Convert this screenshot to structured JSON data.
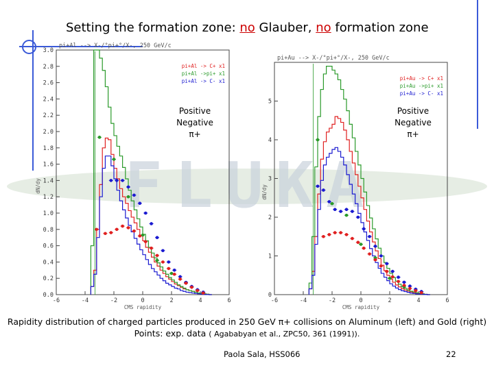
{
  "slide": {
    "title_parts": [
      "Setting the formation zone: ",
      "no",
      " Glauber, ",
      "no",
      " formation zone"
    ],
    "caption_line1": "Rapidity distribution of charged particles produced in 250 GeV π+ collisions on Aluminum (left) and Gold (right)",
    "caption_line2": "Points: exp. data",
    "caption_ref": "( Agababyan et al., ZPC50, 361 (1991)).",
    "footer": "Paola Sala, HSS066",
    "page_number": "22",
    "watermark_text": "FLUKA",
    "colors": {
      "accent": "#cc0000",
      "frame": "#3a5ad8",
      "positive": "#e02020",
      "negative": "#1a1ad0",
      "pion": "#2a9a2a"
    }
  },
  "overlay_legend": {
    "positive": "Positive",
    "negative": "Negative",
    "pion": "π+"
  },
  "chart_data": [
    {
      "type": "line",
      "title": "pi+Al --> X-/°pi+°/X-, 250 GeV/c",
      "xlabel": "CMS rapidity",
      "ylabel": "dN/dy",
      "xlim": [
        -6,
        6
      ],
      "ylim": [
        0,
        3.0
      ],
      "xticks": [
        -6,
        -4,
        -2,
        0,
        2,
        4,
        6
      ],
      "yticks": [
        0.0,
        0.2,
        0.4,
        0.6,
        0.8,
        1.0,
        1.2,
        1.4,
        1.6,
        1.8,
        2.0,
        2.2,
        2.4,
        2.6,
        2.8,
        3.0
      ],
      "legend": [
        "pi+Al -> C+ x1",
        "pi+Al ->pi+ x1",
        "pi+Al -> C- x1"
      ],
      "series": [
        {
          "name": "pi+Al -> C+ x1",
          "color": "#e02020",
          "style": "step",
          "x": [
            -3.6,
            -3.4,
            -3.2,
            -3.0,
            -2.8,
            -2.6,
            -2.4,
            -2.2,
            -2.0,
            -1.8,
            -1.6,
            -1.4,
            -1.2,
            -1.0,
            -0.8,
            -0.6,
            -0.4,
            -0.2,
            0.0,
            0.2,
            0.4,
            0.6,
            0.8,
            1.0,
            1.2,
            1.4,
            1.6,
            1.8,
            2.0,
            2.2,
            2.4,
            2.6,
            2.8,
            3.0,
            3.2,
            3.4,
            3.6,
            3.8,
            4.0,
            4.2,
            4.4,
            4.6
          ],
          "y": [
            0.1,
            0.3,
            0.8,
            1.35,
            1.8,
            1.92,
            1.9,
            1.72,
            1.55,
            1.42,
            1.3,
            1.2,
            1.12,
            1.03,
            0.95,
            0.88,
            0.8,
            0.73,
            0.66,
            0.58,
            0.52,
            0.46,
            0.4,
            0.35,
            0.3,
            0.26,
            0.22,
            0.19,
            0.16,
            0.13,
            0.11,
            0.09,
            0.07,
            0.06,
            0.05,
            0.04,
            0.03,
            0.02,
            0.015,
            0.01,
            0.005,
            0.0
          ]
        },
        {
          "name": "pi+Al ->pi+ x1",
          "color": "#2a9a2a",
          "style": "step",
          "x": [
            -3.6,
            -3.4,
            -3.2,
            -3.0,
            -2.8,
            -2.6,
            -2.4,
            -2.2,
            -2.0,
            -1.8,
            -1.6,
            -1.4,
            -1.2,
            -1.0,
            -0.8,
            -0.6,
            -0.4,
            -0.2,
            0.0,
            0.2,
            0.4,
            0.6,
            0.8,
            1.0,
            1.2,
            1.4,
            1.6,
            1.8,
            2.0,
            2.2,
            2.4,
            2.6,
            2.8,
            3.0,
            3.2,
            3.4,
            3.6,
            3.8,
            4.0,
            4.2,
            4.4,
            4.6
          ],
          "y": [
            0.6,
            3.0,
            3.0,
            2.9,
            2.75,
            2.55,
            2.3,
            2.1,
            1.95,
            1.82,
            1.7,
            1.56,
            1.42,
            1.28,
            1.15,
            1.04,
            0.93,
            0.83,
            0.74,
            0.66,
            0.58,
            0.51,
            0.45,
            0.39,
            0.34,
            0.29,
            0.25,
            0.21,
            0.18,
            0.15,
            0.12,
            0.1,
            0.08,
            0.06,
            0.05,
            0.04,
            0.03,
            0.02,
            0.015,
            0.01,
            0.005,
            0.0
          ]
        },
        {
          "name": "pi+Al -> C- x1",
          "color": "#1a1ad0",
          "style": "step",
          "x": [
            -3.6,
            -3.4,
            -3.2,
            -3.0,
            -2.8,
            -2.6,
            -2.4,
            -2.2,
            -2.0,
            -1.8,
            -1.6,
            -1.4,
            -1.2,
            -1.0,
            -0.8,
            -0.6,
            -0.4,
            -0.2,
            0.0,
            0.2,
            0.4,
            0.6,
            0.8,
            1.0,
            1.2,
            1.4,
            1.6,
            1.8,
            2.0,
            2.2,
            2.4,
            2.6,
            2.8,
            3.0,
            3.2,
            3.4,
            3.6,
            3.8,
            4.0,
            4.2,
            4.4,
            4.6
          ],
          "y": [
            0.1,
            0.25,
            0.7,
            1.2,
            1.55,
            1.7,
            1.7,
            1.58,
            1.42,
            1.28,
            1.15,
            1.04,
            0.94,
            0.85,
            0.77,
            0.69,
            0.62,
            0.55,
            0.49,
            0.43,
            0.37,
            0.32,
            0.28,
            0.24,
            0.2,
            0.17,
            0.14,
            0.12,
            0.1,
            0.08,
            0.07,
            0.05,
            0.04,
            0.03,
            0.025,
            0.02,
            0.015,
            0.01,
            0.005,
            0.003,
            0.001,
            0.0
          ]
        },
        {
          "name": "pi+ data",
          "color": "#2a9a2a",
          "style": "points",
          "x": [
            -3.0,
            -2.0,
            -1.0,
            0.0,
            1.0,
            2.0,
            3.0
          ],
          "y": [
            1.93,
            1.66,
            1.2,
            0.73,
            0.42,
            0.26,
            0.15
          ]
        },
        {
          "name": "C- data",
          "color": "#1a1ad0",
          "style": "points",
          "x": [
            -2.2,
            -1.8,
            -1.4,
            -1.0,
            -0.6,
            -0.2,
            0.2,
            0.6,
            1.0,
            1.4,
            1.8,
            2.2,
            2.6,
            3.0,
            3.4,
            3.8,
            4.2
          ],
          "y": [
            1.4,
            1.4,
            1.4,
            1.32,
            1.22,
            1.12,
            1.0,
            0.87,
            0.7,
            0.54,
            0.4,
            0.3,
            0.22,
            0.15,
            0.1,
            0.06,
            0.03
          ]
        },
        {
          "name": "C+ data",
          "color": "#e02020",
          "style": "points",
          "x": [
            -3.2,
            -2.6,
            -2.2,
            -1.8,
            -1.4,
            -1.0,
            -0.6,
            -0.2,
            0.2,
            0.6,
            1.0,
            1.4,
            1.8,
            2.2,
            2.6,
            3.0,
            3.4,
            3.8,
            4.2
          ],
          "y": [
            0.8,
            0.75,
            0.76,
            0.8,
            0.84,
            0.82,
            0.78,
            0.72,
            0.65,
            0.57,
            0.48,
            0.4,
            0.32,
            0.25,
            0.19,
            0.14,
            0.09,
            0.05,
            0.02
          ]
        }
      ]
    },
    {
      "type": "line",
      "title": "pi+Au --> X-/°pi+°/X-, 250 GeV/c",
      "xlabel": "CMS rapidity",
      "ylabel": "dN/dy",
      "xlim": [
        -6,
        6
      ],
      "ylim": [
        0,
        6.0
      ],
      "xticks": [
        -6,
        -4,
        -2,
        0,
        2,
        4,
        6
      ],
      "yticks": [
        0,
        1,
        2,
        3,
        4,
        5
      ],
      "legend": [
        "pi+Au -> C+ x1",
        "pi+Au ->pi+ x1",
        "pi+Au -> C- x1"
      ],
      "series": [
        {
          "name": "pi+Au -> C+ x1",
          "color": "#e02020",
          "style": "step",
          "x": [
            -3.6,
            -3.4,
            -3.2,
            -3.0,
            -2.8,
            -2.6,
            -2.4,
            -2.2,
            -2.0,
            -1.8,
            -1.6,
            -1.4,
            -1.2,
            -1.0,
            -0.8,
            -0.6,
            -0.4,
            -0.2,
            0.0,
            0.2,
            0.4,
            0.6,
            0.8,
            1.0,
            1.2,
            1.4,
            1.6,
            1.8,
            2.0,
            2.2,
            2.4,
            2.6,
            2.8,
            3.0,
            3.2,
            3.4,
            3.6,
            3.8,
            4.0,
            4.2,
            4.4,
            4.6
          ],
          "y": [
            0.15,
            0.6,
            1.5,
            2.6,
            3.5,
            3.95,
            4.2,
            4.3,
            4.4,
            4.6,
            4.55,
            4.45,
            4.25,
            4.0,
            3.7,
            3.4,
            3.1,
            2.8,
            2.5,
            2.2,
            1.9,
            1.62,
            1.36,
            1.13,
            0.93,
            0.76,
            0.62,
            0.5,
            0.4,
            0.32,
            0.25,
            0.2,
            0.15,
            0.12,
            0.09,
            0.07,
            0.05,
            0.04,
            0.03,
            0.02,
            0.01,
            0.0
          ]
        },
        {
          "name": "pi+Au ->pi+ x1",
          "color": "#2a9a2a",
          "style": "step",
          "x": [
            -3.6,
            -3.4,
            -3.2,
            -3.0,
            -2.8,
            -2.6,
            -2.4,
            -2.2,
            -2.0,
            -1.8,
            -1.6,
            -1.4,
            -1.2,
            -1.0,
            -0.8,
            -0.6,
            -0.4,
            -0.2,
            0.0,
            0.2,
            0.4,
            0.6,
            0.8,
            1.0,
            1.2,
            1.4,
            1.6,
            1.8,
            2.0,
            2.2,
            2.4,
            2.6,
            2.8,
            3.0,
            3.2,
            3.4,
            3.6,
            3.8,
            4.0,
            4.2,
            4.4,
            4.6
          ],
          "y": [
            0.3,
            1.5,
            3.3,
            4.6,
            5.3,
            5.7,
            5.9,
            5.9,
            5.8,
            5.7,
            5.55,
            5.3,
            5.05,
            4.75,
            4.4,
            4.05,
            3.7,
            3.35,
            3.0,
            2.65,
            2.3,
            1.98,
            1.7,
            1.44,
            1.2,
            1.0,
            0.83,
            0.68,
            0.55,
            0.44,
            0.35,
            0.27,
            0.21,
            0.16,
            0.12,
            0.09,
            0.07,
            0.05,
            0.03,
            0.02,
            0.01,
            0.0
          ]
        },
        {
          "name": "pi+Au -> C- x1",
          "color": "#1a1ad0",
          "style": "step",
          "x": [
            -3.6,
            -3.4,
            -3.2,
            -3.0,
            -2.8,
            -2.6,
            -2.4,
            -2.2,
            -2.0,
            -1.8,
            -1.6,
            -1.4,
            -1.2,
            -1.0,
            -0.8,
            -0.6,
            -0.4,
            -0.2,
            0.0,
            0.2,
            0.4,
            0.6,
            0.8,
            1.0,
            1.2,
            1.4,
            1.6,
            1.8,
            2.0,
            2.2,
            2.4,
            2.6,
            2.8,
            3.0,
            3.2,
            3.4,
            3.6,
            3.8,
            4.0,
            4.2,
            4.4,
            4.6
          ],
          "y": [
            0.15,
            0.5,
            1.3,
            2.2,
            2.95,
            3.35,
            3.55,
            3.65,
            3.75,
            3.8,
            3.7,
            3.55,
            3.35,
            3.1,
            2.85,
            2.6,
            2.35,
            2.1,
            1.86,
            1.62,
            1.4,
            1.19,
            1.0,
            0.83,
            0.68,
            0.55,
            0.45,
            0.36,
            0.28,
            0.22,
            0.17,
            0.13,
            0.1,
            0.08,
            0.06,
            0.04,
            0.03,
            0.02,
            0.015,
            0.01,
            0.005,
            0.0
          ]
        },
        {
          "name": "pi+ data",
          "color": "#2a9a2a",
          "style": "points",
          "x": [
            -3.0,
            -2.0,
            -1.0,
            0.0,
            1.0,
            2.0,
            3.0
          ],
          "y": [
            4.0,
            2.35,
            2.05,
            1.3,
            0.95,
            0.42,
            0.2
          ]
        },
        {
          "name": "C- data",
          "color": "#1a1ad0",
          "style": "points",
          "x": [
            -3.0,
            -2.6,
            -2.2,
            -1.8,
            -1.4,
            -1.0,
            -0.6,
            -0.2,
            0.2,
            0.6,
            1.0,
            1.4,
            1.8,
            2.2,
            2.6,
            3.0,
            3.4,
            3.8,
            4.2
          ],
          "y": [
            2.8,
            2.7,
            2.4,
            2.2,
            2.15,
            2.2,
            2.15,
            2.0,
            1.7,
            1.5,
            1.25,
            1.0,
            0.8,
            0.6,
            0.45,
            0.32,
            0.22,
            0.14,
            0.08
          ]
        },
        {
          "name": "C+ data",
          "color": "#e02020",
          "style": "points",
          "x": [
            -2.6,
            -2.2,
            -1.8,
            -1.4,
            -1.0,
            -0.6,
            -0.2,
            0.2,
            0.6,
            1.0,
            1.4,
            1.8,
            2.2,
            2.6,
            3.0,
            3.4,
            3.8,
            4.2
          ],
          "y": [
            1.5,
            1.55,
            1.6,
            1.6,
            1.55,
            1.45,
            1.35,
            1.2,
            1.05,
            0.9,
            0.74,
            0.6,
            0.46,
            0.34,
            0.24,
            0.16,
            0.1,
            0.05
          ]
        }
      ]
    }
  ]
}
